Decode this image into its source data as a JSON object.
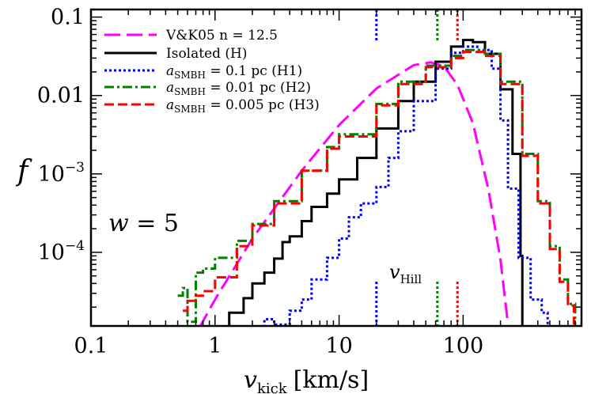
{
  "chart_data": {
    "type": "line",
    "xscale": "log",
    "yscale": "log",
    "xlim": [
      0.1,
      900
    ],
    "ylim": [
      1.15e-05,
      0.125
    ],
    "xlabel": "v_kick [km/s]",
    "xlabel_main": "v",
    "xlabel_sub": "kick",
    "xlabel_units": "[km/s]",
    "ylabel": "f",
    "xticks": [
      {
        "value": 0.1,
        "label": "0.1"
      },
      {
        "value": 1,
        "label": "1"
      },
      {
        "value": 10,
        "label": "10"
      },
      {
        "value": 100,
        "label": "100"
      }
    ],
    "yticks": [
      {
        "value": 0.0001,
        "label": "10",
        "exp": "−4"
      },
      {
        "value": 0.001,
        "label": "10",
        "exp": "−3"
      },
      {
        "value": 0.01,
        "label": "0.01",
        "exp": ""
      },
      {
        "value": 0.1,
        "label": "0.1",
        "exp": ""
      }
    ],
    "annotation_w": "w = 5",
    "annotation_w_var": "w",
    "annotation_w_rest": " = 5",
    "annotation_vhill_main": "v",
    "annotation_vhill_sub": "Hill",
    "grid": false,
    "legend_position": "top-left",
    "series": [
      {
        "name": "V&K05  n = 12.5",
        "legend_text": "V&K05  n = 12.5",
        "color": "#ff00ff",
        "style": "longdash",
        "x": [
          0.75,
          1.0,
          2.0,
          5.0,
          10,
          20,
          40,
          55,
          70,
          90,
          120,
          160,
          200,
          230
        ],
        "y": [
          1.1e-05,
          2.5e-05,
          0.00015,
          0.0011,
          0.0042,
          0.0123,
          0.0244,
          0.0265,
          0.0236,
          0.0137,
          0.0044,
          0.00063,
          8e-05,
          1.2e-05
        ]
      },
      {
        "name": "Isolated (H)",
        "legend_text": "Isolated  (H)",
        "color": "#000000",
        "style": "solid",
        "x": [
          1.0,
          1.3,
          1.7,
          2.0,
          2.5,
          3.0,
          3.5,
          4.0,
          5.0,
          6.0,
          8.0,
          10,
          14,
          20,
          30,
          40,
          60,
          80,
          100,
          120,
          150,
          200,
          250,
          290,
          300
        ],
        "y": [
          1.1e-05,
          1.7e-05,
          2.6e-05,
          4e-05,
          5.5e-05,
          8.3e-05,
          0.000135,
          0.00016,
          0.00025,
          0.00038,
          0.00056,
          0.00085,
          0.0016,
          0.0038,
          0.0085,
          0.015,
          0.027,
          0.042,
          0.051,
          0.048,
          0.034,
          0.012,
          0.0018,
          9e-05,
          1.1e-05
        ]
      },
      {
        "name": "a_SMBH = 0.1 pc (H1)",
        "legend_prefix": "a",
        "legend_sub": "SMBH",
        "legend_suffix": " = 0.1 pc  (H1)",
        "color": "#0000ff",
        "style": "dotted",
        "x": [
          2.3,
          2.5,
          3.0,
          4.0,
          5.0,
          6.0,
          8.0,
          10,
          12,
          15,
          20,
          25,
          30,
          40,
          60,
          80,
          100,
          130,
          170,
          200,
          230,
          280,
          350,
          430,
          480
        ],
        "y": [
          1.1e-05,
          1.4e-05,
          1.2e-05,
          1.8e-05,
          2.5e-05,
          4.5e-05,
          8.5e-05,
          0.00015,
          0.00028,
          0.00042,
          0.00068,
          0.0016,
          0.0035,
          0.0085,
          0.022,
          0.035,
          0.042,
          0.038,
          0.022,
          0.0048,
          0.00065,
          8.5e-05,
          2.5e-05,
          1.7e-05,
          1.2e-05
        ]
      },
      {
        "name": "a_SMBH = 0.01 pc (H2)",
        "legend_prefix": "a",
        "legend_sub": "SMBH",
        "legend_suffix": " = 0.01 pc  (H2)",
        "color": "#008000",
        "style": "dashdot",
        "x": [
          0.5,
          0.55,
          0.6,
          0.7,
          0.8,
          1.0,
          1.5,
          2.0,
          3.0,
          5.0,
          8.0,
          10,
          20,
          30,
          50,
          80,
          100,
          150,
          200,
          300,
          400,
          500,
          600,
          700,
          800
        ],
        "y": [
          2.8e-05,
          3.5e-05,
          1.3e-05,
          5.5e-05,
          6.2e-05,
          8.5e-05,
          0.00014,
          0.00023,
          0.00045,
          0.0011,
          0.0022,
          0.0032,
          0.0078,
          0.015,
          0.024,
          0.032,
          0.038,
          0.034,
          0.015,
          0.0018,
          0.00045,
          0.00012,
          4.5e-05,
          2.2e-05,
          1.2e-05
        ]
      },
      {
        "name": "a_SMBH = 0.005 pc (H3)",
        "legend_prefix": "a",
        "legend_sub": "SMBH",
        "legend_suffix": " = 0.005 pc  (H3)",
        "color": "#ff0000",
        "style": "dashed",
        "x": [
          0.55,
          0.6,
          0.7,
          0.8,
          1.0,
          1.5,
          2.0,
          3.0,
          5.0,
          8.0,
          10,
          20,
          30,
          50,
          80,
          100,
          150,
          200,
          300,
          400,
          500,
          600,
          700,
          780
        ],
        "y": [
          1.8e-05,
          2.4e-05,
          2.8e-05,
          3.2e-05,
          4.8e-05,
          0.00012,
          0.00022,
          0.00042,
          0.0011,
          0.0021,
          0.003,
          0.0075,
          0.014,
          0.023,
          0.03,
          0.036,
          0.032,
          0.014,
          0.0017,
          0.00042,
          0.00011,
          4.2e-05,
          2.1e-05,
          1.2e-05
        ]
      }
    ],
    "vertical_markers": [
      {
        "x": 20,
        "color": "#0000ff"
      },
      {
        "x": 62,
        "color": "#008000"
      },
      {
        "x": 90,
        "color": "#ff0000"
      }
    ]
  }
}
